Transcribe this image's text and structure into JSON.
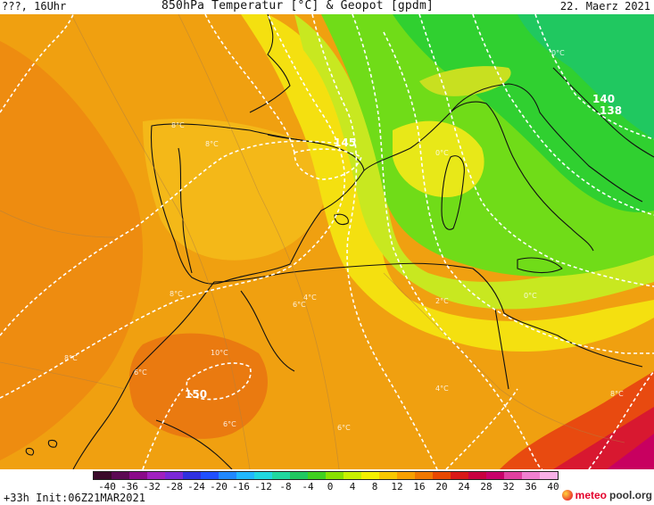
{
  "header": {
    "left": "???, 16Uhr",
    "center": "850hPa Temperatur [°C] & Geopot [gpdm]",
    "right": "22. Maerz 2021"
  },
  "footer": {
    "run_info": "+33h Init:06Z21MAR2021",
    "logo_part1": "meteo",
    "logo_part2": "pool.org"
  },
  "map": {
    "geopotential_labels": [
      "145",
      "140",
      "138",
      "150"
    ],
    "temperature_labels": [
      "0°C",
      "8°C",
      "8°C",
      "4°C",
      "6°C",
      "8°C",
      "10°C",
      "2°C",
      "0°C",
      "0°C",
      "4°C",
      "6°C",
      "8°C",
      "6°C",
      "8°C",
      "6°C"
    ]
  },
  "legend": {
    "ticks": [
      "-40",
      "-36",
      "-32",
      "-28",
      "-24",
      "-20",
      "-16",
      "-12",
      "-8",
      "-4",
      "0",
      "4",
      "8",
      "12",
      "16",
      "20",
      "24",
      "28",
      "32",
      "36",
      "40"
    ],
    "colors": [
      "#3a0a2a",
      "#5c0a54",
      "#8a0a8a",
      "#a020c0",
      "#7b28d8",
      "#3030e0",
      "#2050ff",
      "#2088ff",
      "#20b8ff",
      "#20d8e0",
      "#20d8a0",
      "#20c860",
      "#40d020",
      "#88e000",
      "#c8f000",
      "#f4f000",
      "#f8c800",
      "#f8a000",
      "#f07800",
      "#e84800",
      "#d81818",
      "#c80040",
      "#c8006a",
      "#e040a0",
      "#f080d0",
      "#f8b0e8"
    ]
  }
}
